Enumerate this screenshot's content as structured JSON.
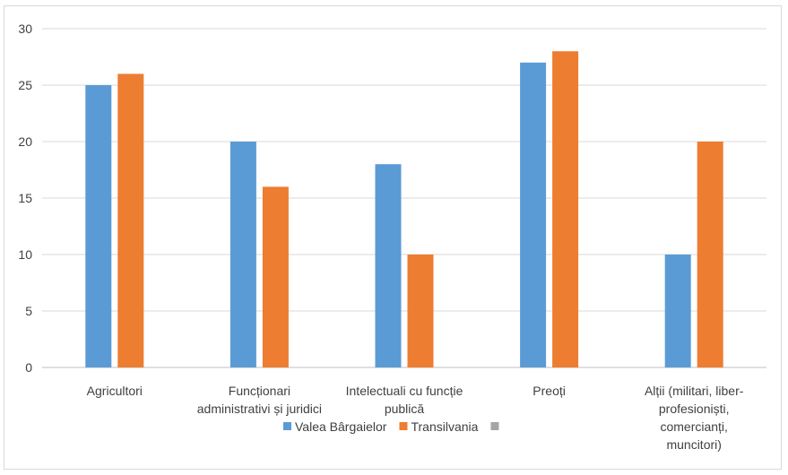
{
  "chart_data": {
    "type": "bar",
    "categories": [
      [
        "Agricultori"
      ],
      [
        "Funcționari",
        "administrativi și juridici"
      ],
      [
        "Intelectuali cu funcție",
        "publică"
      ],
      [
        "Preoți"
      ],
      [
        "Alții (militari, liber-",
        "profesioniști,",
        "comercianți,",
        "muncitori)"
      ]
    ],
    "series": [
      {
        "name": "Valea Bârgaielor",
        "color": "#5b9bd5",
        "values": [
          25,
          20,
          18,
          27,
          10
        ]
      },
      {
        "name": "Transilvania",
        "color": "#ed7d31",
        "values": [
          26,
          16,
          10,
          28,
          20
        ]
      },
      {
        "name": "",
        "color": "#a5a5a5",
        "values": [
          null,
          null,
          null,
          null,
          null
        ]
      }
    ],
    "yticks": [
      0,
      5,
      10,
      15,
      20,
      25,
      30
    ],
    "ylim": [
      0,
      30
    ],
    "grid": true,
    "legend": "bottom",
    "title": "",
    "xlabel": "",
    "ylabel": ""
  }
}
